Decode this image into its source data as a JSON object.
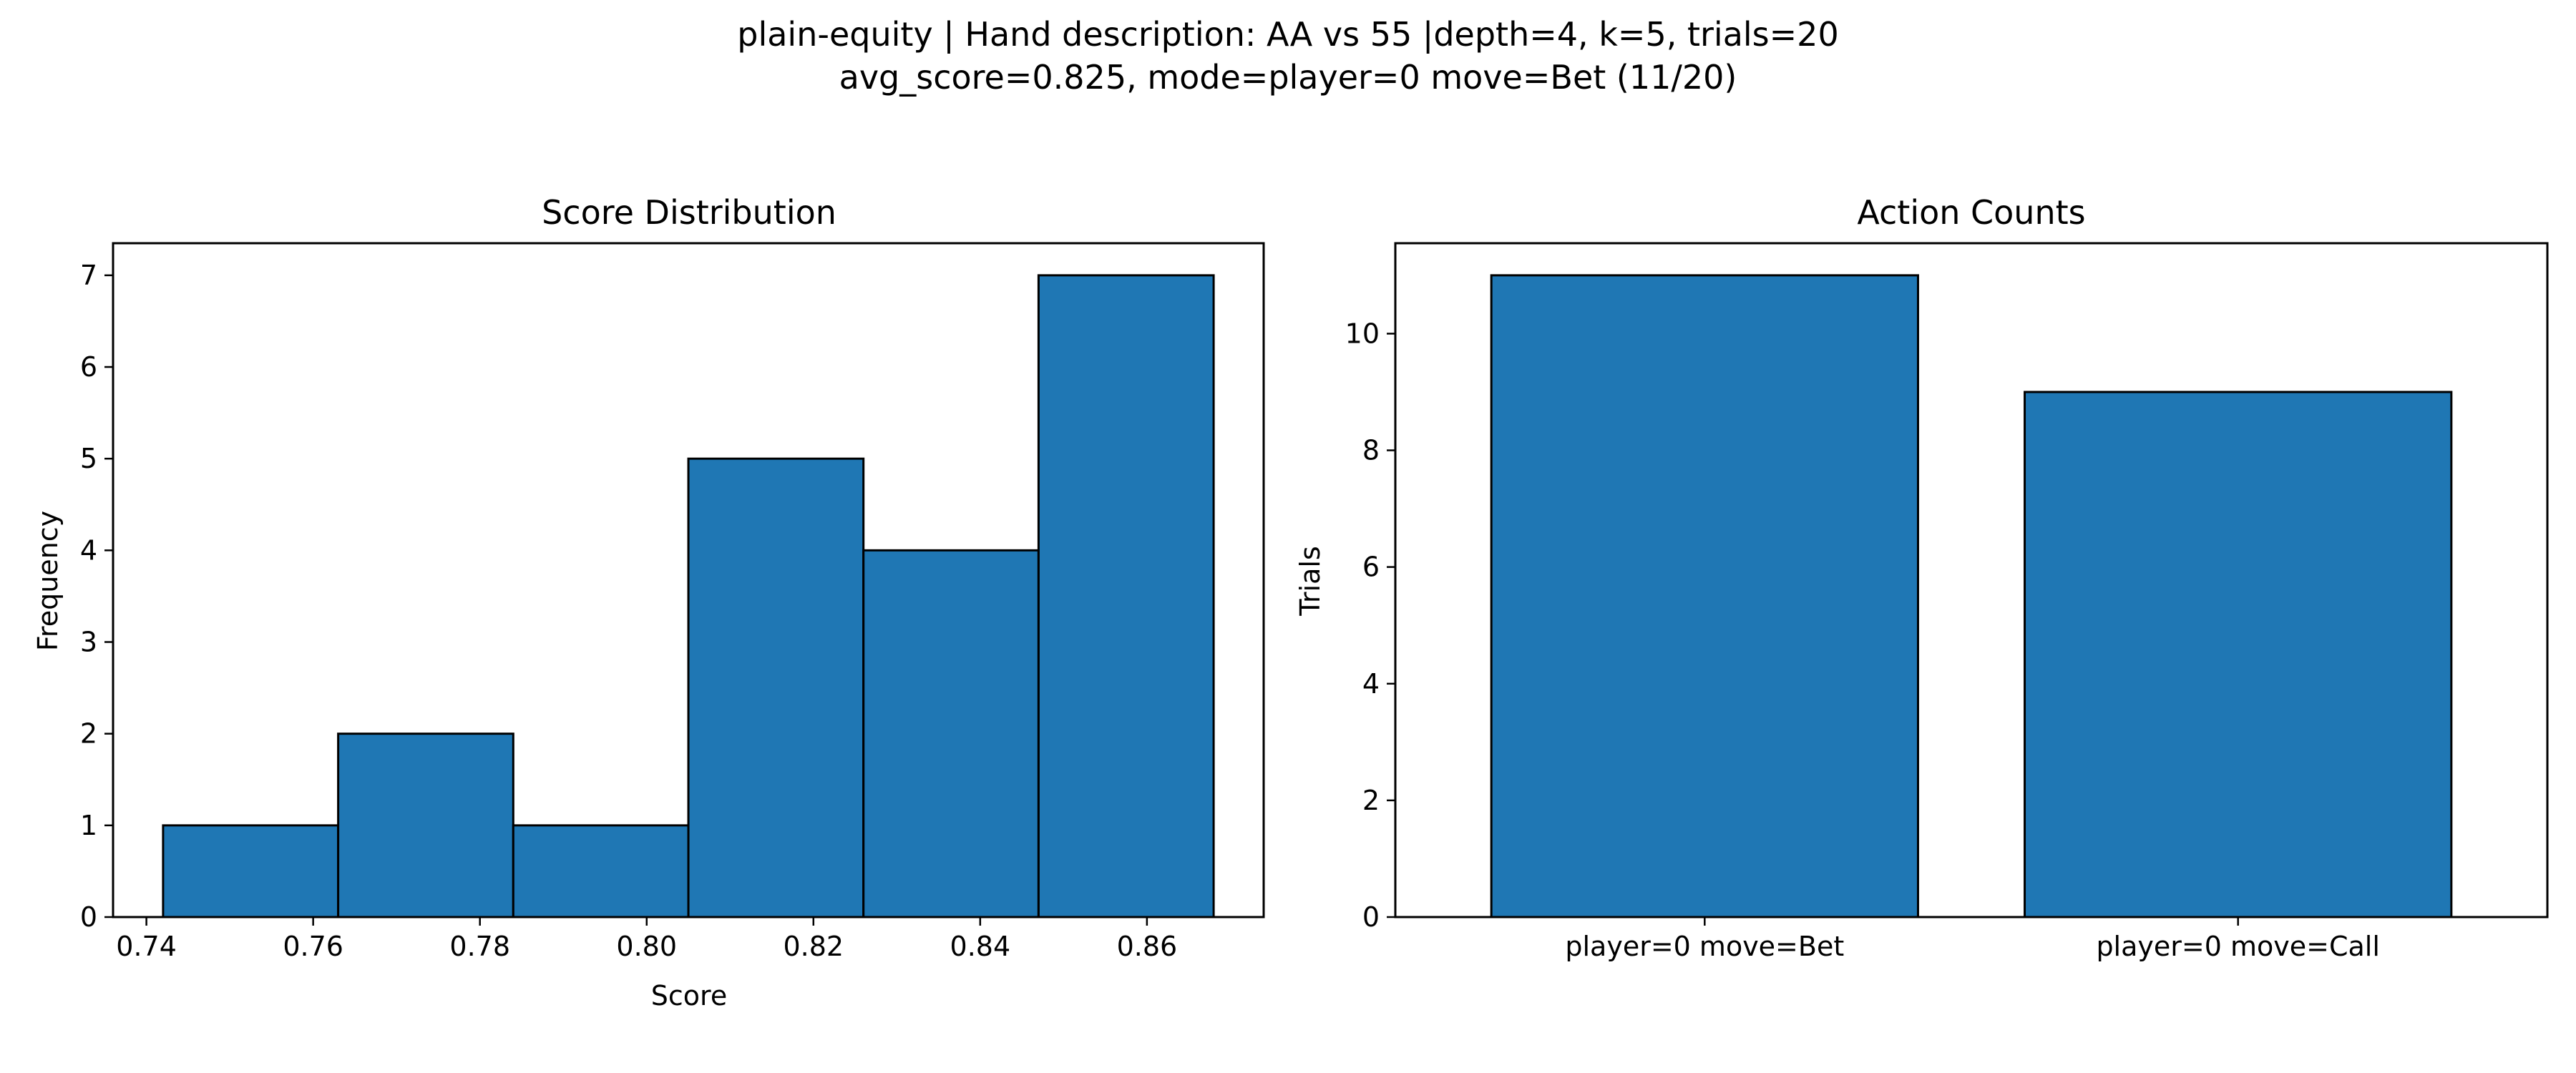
{
  "figure": {
    "title_line1": "plain-equity | Hand description: AA vs 55 |depth=4, k=5, trials=20",
    "title_line2": "avg_score=0.825, mode=player=0 move=Bet (11/20)"
  },
  "colors": {
    "bar_fill": "#1f77b4",
    "bar_edge": "#000000",
    "axis": "#000000"
  },
  "chart_data": [
    {
      "type": "bar",
      "subtype": "histogram",
      "title": "Score Distribution",
      "xlabel": "Score",
      "ylabel": "Frequency",
      "bin_edges": [
        0.742,
        0.763,
        0.784,
        0.805,
        0.826,
        0.847,
        0.868
      ],
      "values": [
        1,
        2,
        1,
        5,
        4,
        7
      ],
      "xlim": [
        0.736,
        0.874
      ],
      "ylim": [
        0,
        7.35
      ],
      "xticks": [
        0.74,
        0.76,
        0.78,
        0.8,
        0.82,
        0.84,
        0.86
      ],
      "xtick_labels": [
        "0.74",
        "0.76",
        "0.78",
        "0.80",
        "0.82",
        "0.84",
        "0.86"
      ],
      "yticks": [
        0,
        1,
        2,
        3,
        4,
        5,
        6,
        7
      ],
      "ytick_labels": [
        "0",
        "1",
        "2",
        "3",
        "4",
        "5",
        "6",
        "7"
      ],
      "grid": false
    },
    {
      "type": "bar",
      "title": "Action Counts",
      "xlabel": "",
      "ylabel": "Trials",
      "categories": [
        "player=0 move=Bet",
        "player=0 move=Call"
      ],
      "values": [
        11,
        9
      ],
      "ylim": [
        0,
        11.55
      ],
      "yticks": [
        0,
        2,
        4,
        6,
        8,
        10
      ],
      "ytick_labels": [
        "0",
        "2",
        "4",
        "6",
        "8",
        "10"
      ],
      "grid": false
    }
  ]
}
